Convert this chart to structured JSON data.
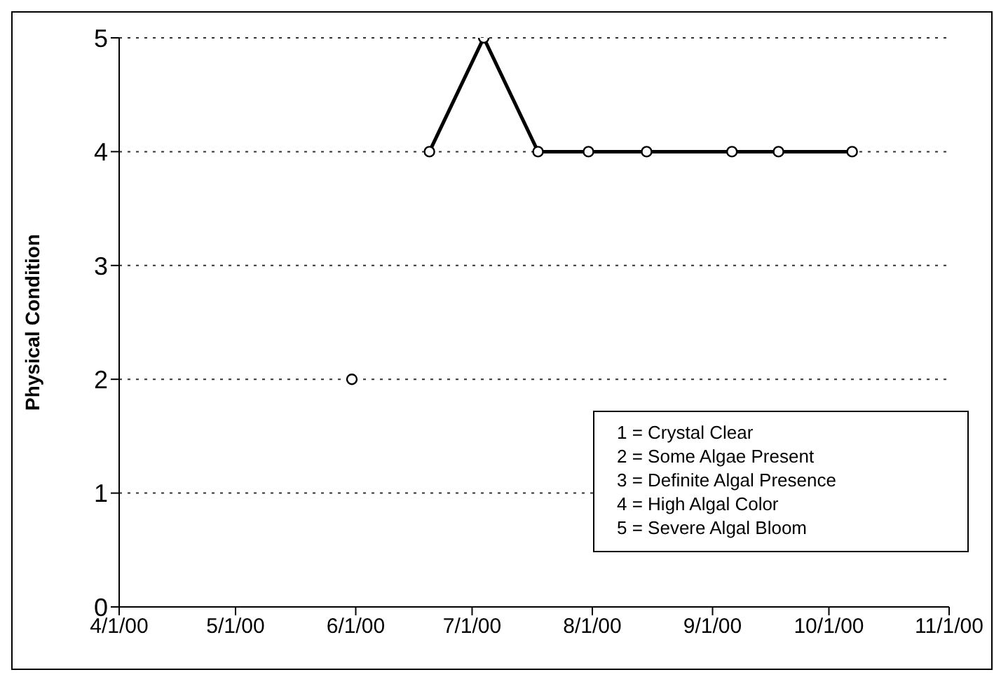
{
  "chart_data": {
    "type": "line",
    "ylabel": "Physical Condition",
    "xlim": [
      "2000-04-01",
      "2000-11-01"
    ],
    "xticks": [
      {
        "value": "2000-04-01",
        "label": "4/1/00"
      },
      {
        "value": "2000-05-01",
        "label": "5/1/00"
      },
      {
        "value": "2000-06-01",
        "label": "6/1/00"
      },
      {
        "value": "2000-07-01",
        "label": "7/1/00"
      },
      {
        "value": "2000-08-01",
        "label": "8/1/00"
      },
      {
        "value": "2000-09-01",
        "label": "9/1/00"
      },
      {
        "value": "2000-10-01",
        "label": "10/1/00"
      },
      {
        "value": "2000-11-01",
        "label": "11/1/00"
      }
    ],
    "ylim": [
      0,
      5
    ],
    "yticks": [
      0,
      1,
      2,
      3,
      4,
      5
    ],
    "grid": "y",
    "marker": "circle",
    "line_style": "solid",
    "legend": false,
    "series": [
      {
        "type": "scatter",
        "color": "#000000",
        "x": [
          "2000-05-31"
        ],
        "values": [
          2
        ]
      },
      {
        "color": "#000000",
        "x": [
          "2000-06-20",
          "2000-07-04",
          "2000-07-18",
          "2000-07-31",
          "2000-08-15",
          "2000-09-06",
          "2000-09-18",
          "2000-10-07"
        ],
        "values": [
          4,
          5,
          4,
          4,
          4,
          4,
          4,
          4
        ]
      }
    ],
    "annotations": [
      "1 = Crystal Clear",
      "2 = Some Algae Present",
      "3 = Definite Algal Presence",
      "4 = High Algal Color",
      "5 = Severe Algal Bloom"
    ]
  }
}
